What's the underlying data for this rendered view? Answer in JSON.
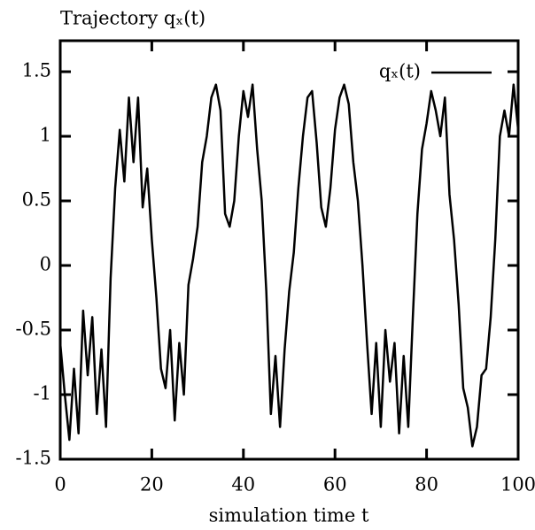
{
  "chart_data": {
    "type": "line",
    "title": "Trajectory qₓ(t)",
    "x_label": "simulation time t",
    "x": [
      0,
      1,
      2,
      3,
      4,
      5,
      6,
      7,
      8,
      9,
      10,
      11,
      12,
      13,
      14,
      15,
      16,
      17,
      18,
      19,
      20,
      21,
      22,
      23,
      24,
      25,
      26,
      27,
      28,
      29,
      30,
      31,
      32,
      33,
      34,
      35,
      36,
      37,
      38,
      39,
      40,
      41,
      42,
      43,
      44,
      45,
      46,
      47,
      48,
      49,
      50,
      51,
      52,
      53,
      54,
      55,
      56,
      57,
      58,
      59,
      60,
      61,
      62,
      63,
      64,
      65,
      66,
      67,
      68,
      69,
      70,
      71,
      72,
      73,
      74,
      75,
      76,
      77,
      78,
      79,
      80,
      81,
      82,
      83,
      84,
      85,
      86,
      87,
      88,
      89,
      90,
      91,
      92,
      93,
      94,
      95,
      96,
      97,
      98,
      99,
      100
    ],
    "series": [
      {
        "name": "qₓ(t)",
        "color": "#000000",
        "values": [
          -0.6,
          -1.0,
          -1.35,
          -0.8,
          -1.3,
          -0.35,
          -0.85,
          -0.4,
          -1.15,
          -0.65,
          -1.25,
          -0.1,
          0.6,
          1.05,
          0.65,
          1.3,
          0.8,
          1.3,
          0.45,
          0.75,
          0.2,
          -0.25,
          -0.8,
          -0.95,
          -0.5,
          -1.2,
          -0.6,
          -1.0,
          -0.15,
          0.05,
          0.3,
          0.8,
          1.0,
          1.3,
          1.4,
          1.2,
          0.4,
          0.3,
          0.5,
          1.0,
          1.35,
          1.15,
          1.4,
          0.9,
          0.5,
          -0.2,
          -1.15,
          -0.7,
          -1.25,
          -0.65,
          -0.2,
          0.1,
          0.6,
          1.0,
          1.3,
          1.35,
          0.95,
          0.45,
          0.3,
          0.6,
          1.05,
          1.3,
          1.4,
          1.25,
          0.8,
          0.5,
          0.0,
          -0.6,
          -1.15,
          -0.6,
          -1.25,
          -0.5,
          -0.9,
          -0.6,
          -1.3,
          -0.7,
          -1.25,
          -0.4,
          0.4,
          0.9,
          1.1,
          1.35,
          1.2,
          1.0,
          1.3,
          0.55,
          0.2,
          -0.3,
          -0.95,
          -1.1,
          -1.4,
          -1.25,
          -0.85,
          -0.8,
          -0.4,
          0.2,
          1.0,
          1.2,
          1.0,
          1.4,
          1.05
        ]
      }
    ],
    "xlim": [
      0,
      100
    ],
    "xticks": [
      0,
      20,
      40,
      60,
      80,
      100
    ],
    "ylim": [
      -1.5,
      1.74
    ],
    "yticks": [
      -1.5,
      -1,
      -0.5,
      0,
      0.5,
      1,
      1.5
    ],
    "legend": "upper right"
  }
}
